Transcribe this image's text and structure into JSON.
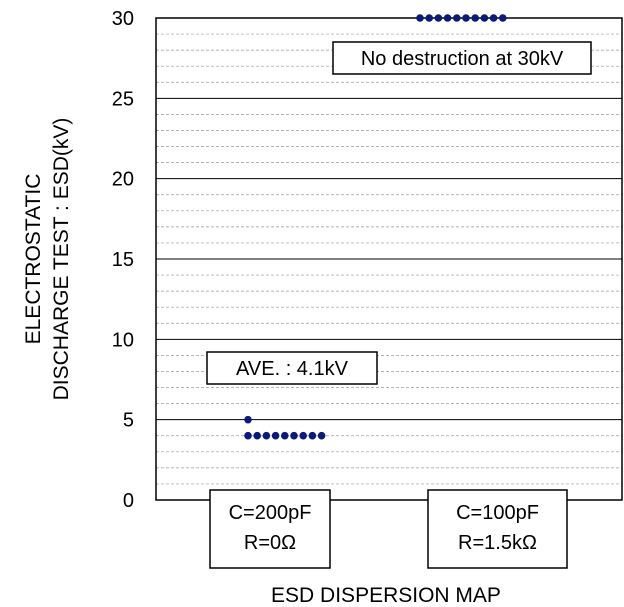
{
  "chart_data": {
    "type": "scatter",
    "title": "",
    "ylabel_lines": [
      "ELECTROSTATIC",
      "DISCHARGE TEST : ESD(kV)"
    ],
    "xlabel": "ESD DISPERSION MAP",
    "ylim": [
      0,
      30
    ],
    "y_ticks": [
      0,
      5,
      10,
      15,
      20,
      25,
      30
    ],
    "minor_grid_step": 1,
    "major_grid_step": 5,
    "categories": [
      {
        "lines": [
          "C=200pF",
          "R=0Ω"
        ]
      },
      {
        "lines": [
          "C=100pF",
          "R=1.5kΩ"
        ]
      }
    ],
    "series": [
      {
        "category_index": 0,
        "color": "#0a1a7a",
        "points": [
          5,
          4,
          4,
          4,
          4,
          4,
          4,
          4,
          4,
          4
        ]
      },
      {
        "category_index": 1,
        "color": "#0a1a7a",
        "points": [
          30,
          30,
          30,
          30,
          30,
          30,
          30,
          30,
          30,
          30
        ]
      }
    ],
    "annotations": [
      {
        "text": "No destruction at 30kV",
        "category_index": 1
      },
      {
        "text": "AVE. : 4.1kV",
        "category_index": 0
      }
    ]
  }
}
